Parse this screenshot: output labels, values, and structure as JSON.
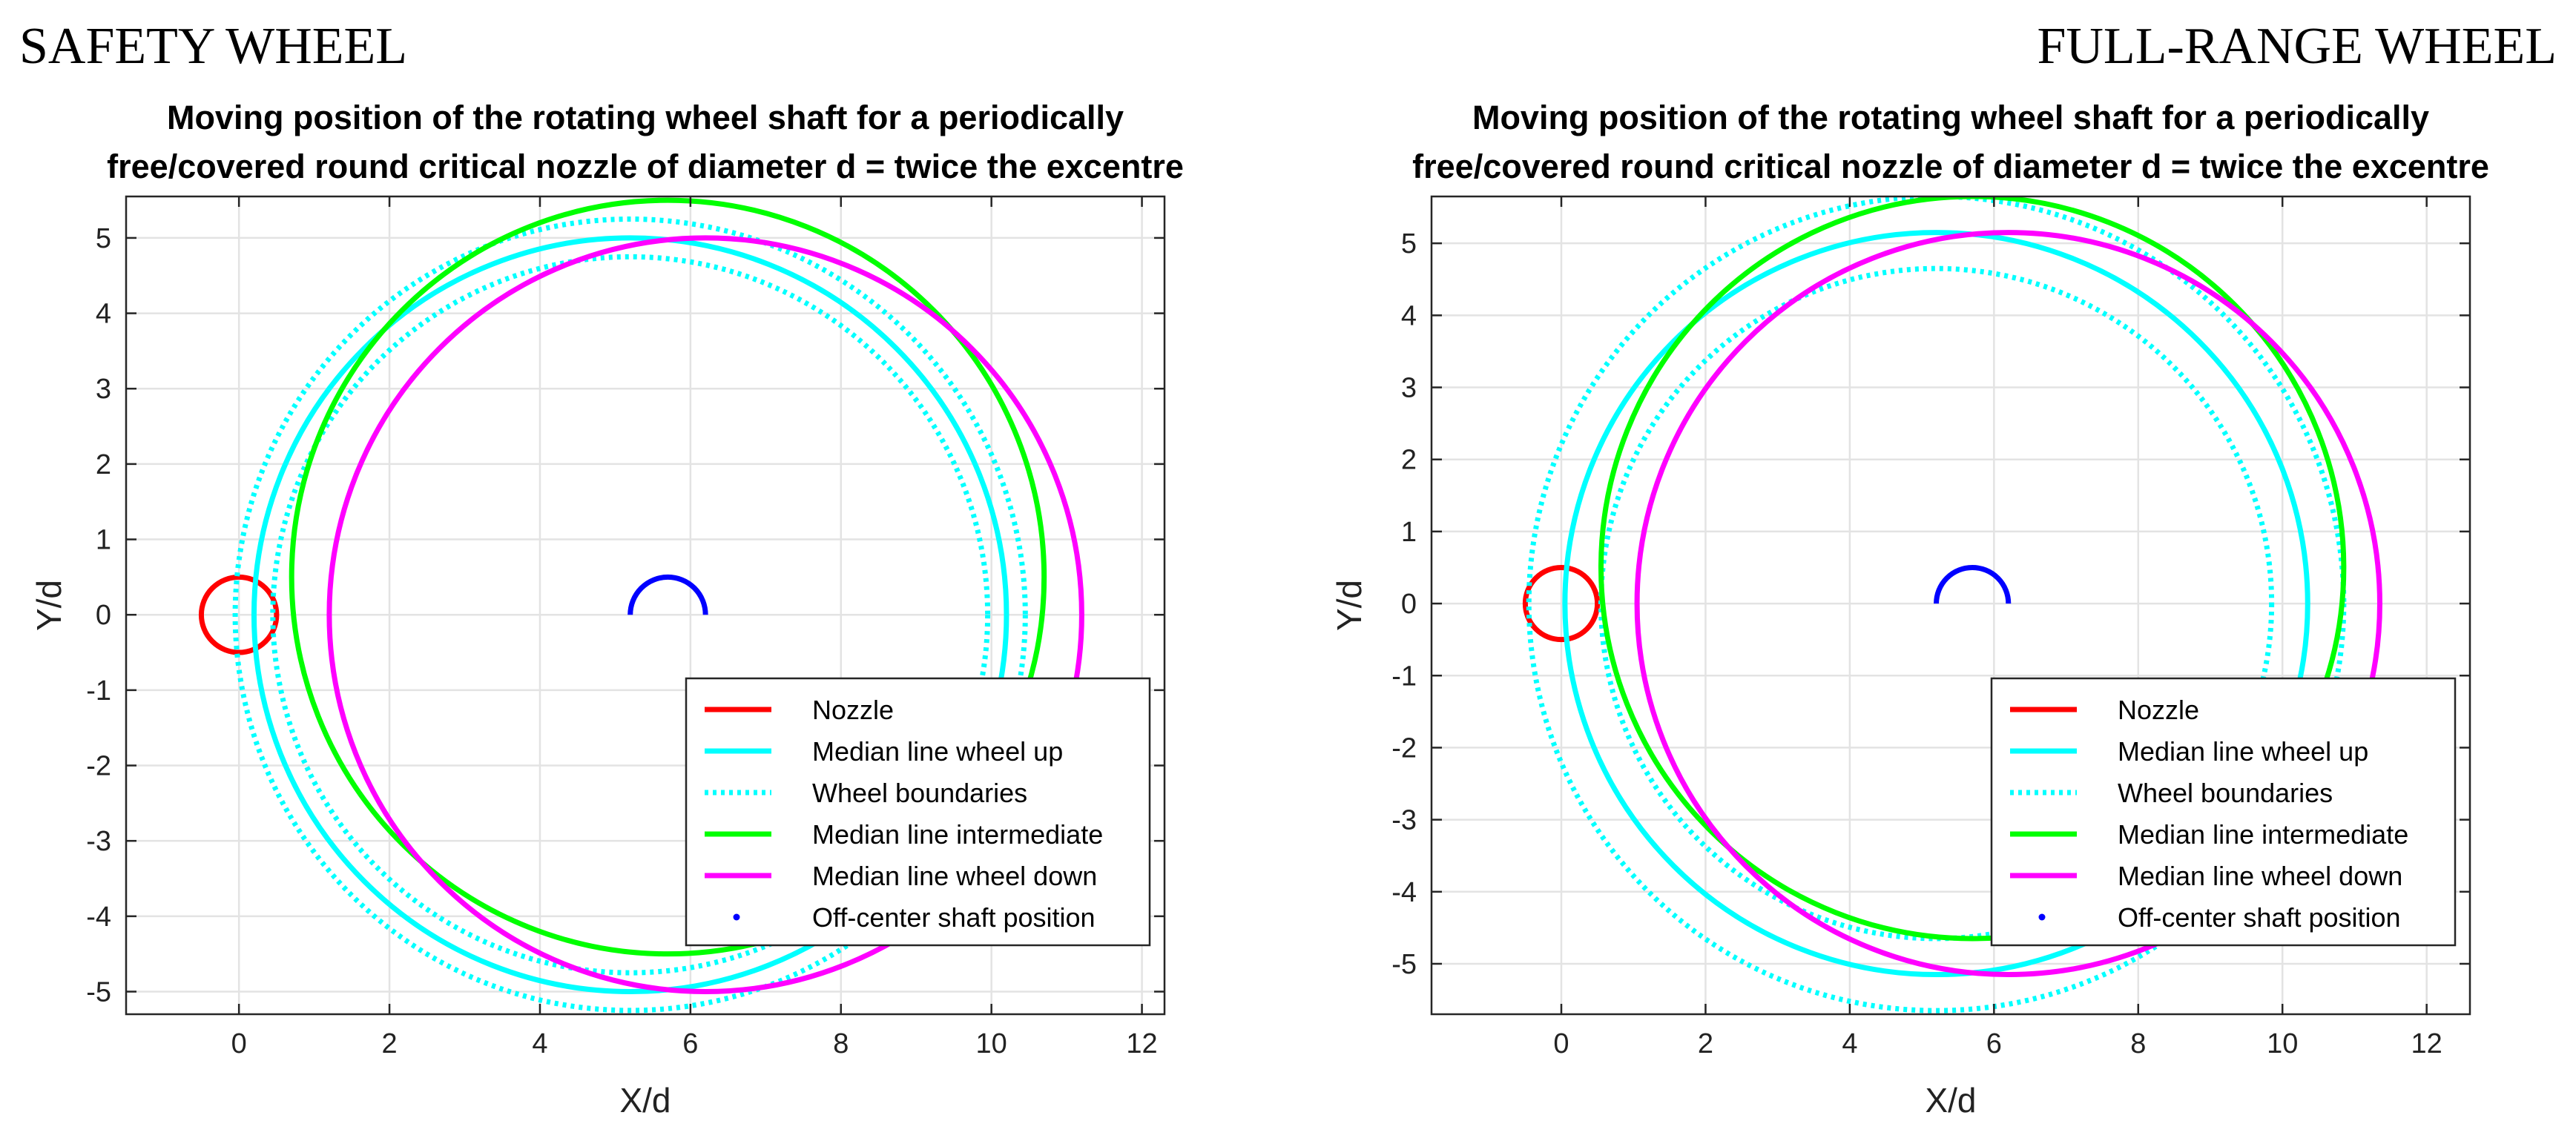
{
  "headings": {
    "left": "SAFETY WHEEL",
    "right": "FULL-RANGE WHEEL"
  },
  "colors": {
    "nozzle": "#ff0000",
    "wheel_up": "#00ffff",
    "intermediate": "#00ff00",
    "wheel_down": "#ff00ff",
    "shaft": "#0000ff",
    "grid": "#e3e3e3"
  },
  "chart_data": [
    {
      "type": "line",
      "panel": "SAFETY WHEEL",
      "title": "Moving position of the rotating wheel shaft for a periodically",
      "subtitle": "free/covered round critical nozzle of diameter d = twice the excentre",
      "xlabel": "X/d",
      "ylabel": "Y/d",
      "xlim": [
        -1.5,
        12.3
      ],
      "ylim": [
        -5.3,
        5.55
      ],
      "xticks": [
        0,
        2,
        4,
        6,
        8,
        10,
        12
      ],
      "yticks": [
        -5,
        -4,
        -3,
        -2,
        -1,
        0,
        1,
        2,
        3,
        4,
        5
      ],
      "grid": true,
      "legend_position": "bottom-right",
      "series": [
        {
          "name": "Nozzle",
          "kind": "circle",
          "color_key": "nozzle",
          "style": "solid",
          "cx": 0,
          "cy": 0,
          "r": 0.5
        },
        {
          "name": "Median line wheel up",
          "kind": "circle",
          "color_key": "wheel_up",
          "style": "solid",
          "cx": 5.2,
          "cy": 0,
          "r": 5.0
        },
        {
          "name": "Wheel boundaries",
          "kind": "circles",
          "color_key": "wheel_up",
          "style": "dotted",
          "cx": 5.2,
          "cy": 0,
          "radii": [
            4.75,
            5.25
          ]
        },
        {
          "name": "Median line intermediate",
          "kind": "circle",
          "color_key": "intermediate",
          "style": "solid",
          "cx": 5.7,
          "cy": 0.5,
          "r": 5.0
        },
        {
          "name": "Median line wheel down",
          "kind": "circle",
          "color_key": "wheel_down",
          "style": "solid",
          "cx": 6.2,
          "cy": 0,
          "r": 5.0
        },
        {
          "name": "Off-center shaft position",
          "kind": "arc",
          "color_key": "shaft",
          "style": "solid",
          "cx": 5.7,
          "cy": 0,
          "r": 0.5
        }
      ]
    },
    {
      "type": "line",
      "panel": "FULL-RANGE WHEEL",
      "title": "Moving position of the rotating wheel shaft for a periodically",
      "subtitle": "free/covered round critical nozzle of diameter d = twice the excentre",
      "xlabel": "X/d",
      "ylabel": "Y/d",
      "xlim": [
        -1.8,
        12.6
      ],
      "ylim": [
        -5.7,
        5.65
      ],
      "xticks": [
        0,
        2,
        4,
        6,
        8,
        10,
        12
      ],
      "yticks": [
        -5,
        -4,
        -3,
        -2,
        -1,
        0,
        1,
        2,
        3,
        4,
        5
      ],
      "grid": true,
      "legend_position": "bottom-right",
      "series": [
        {
          "name": "Nozzle",
          "kind": "circle",
          "color_key": "nozzle",
          "style": "solid",
          "cx": 0,
          "cy": 0,
          "r": 0.5
        },
        {
          "name": "Median line wheel up",
          "kind": "circle",
          "color_key": "wheel_up",
          "style": "solid",
          "cx": 5.2,
          "cy": 0,
          "r": 5.15
        },
        {
          "name": "Wheel boundaries",
          "kind": "circles",
          "color_key": "wheel_up",
          "style": "dotted",
          "cx": 5.2,
          "cy": 0,
          "radii": [
            4.65,
            5.65
          ]
        },
        {
          "name": "Median line intermediate",
          "kind": "circle",
          "color_key": "intermediate",
          "style": "solid",
          "cx": 5.7,
          "cy": 0.5,
          "r": 5.15
        },
        {
          "name": "Median line wheel down",
          "kind": "circle",
          "color_key": "wheel_down",
          "style": "solid",
          "cx": 6.2,
          "cy": 0,
          "r": 5.15
        },
        {
          "name": "Off-center shaft position",
          "kind": "arc",
          "color_key": "shaft",
          "style": "solid",
          "cx": 5.7,
          "cy": 0,
          "r": 0.5
        }
      ]
    }
  ]
}
